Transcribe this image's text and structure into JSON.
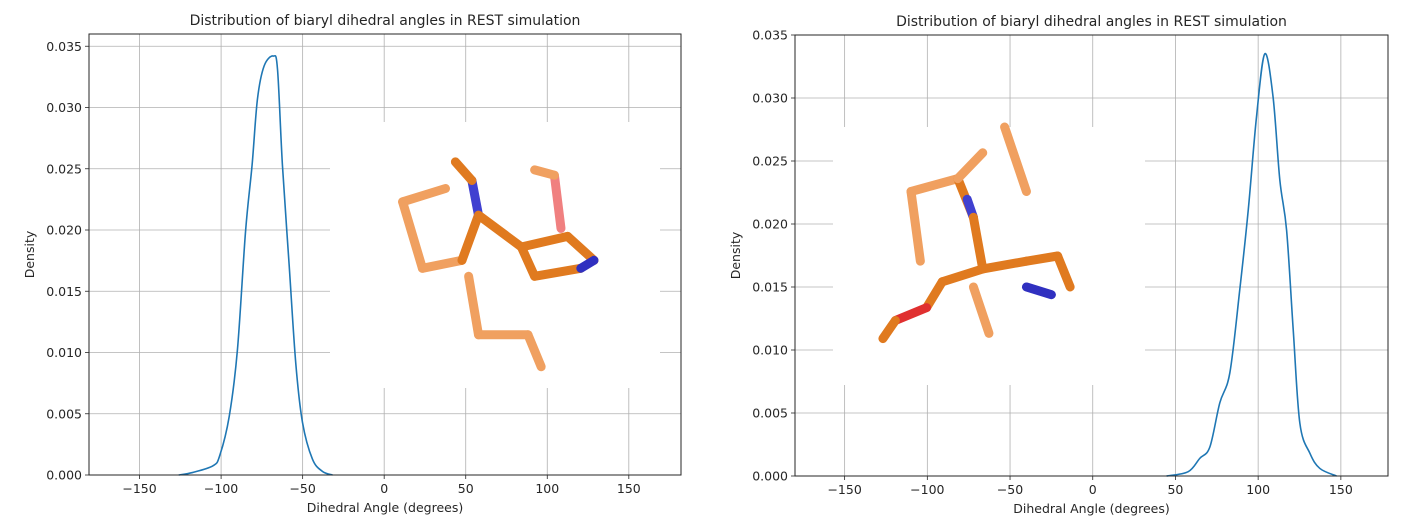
{
  "chart_data": [
    {
      "type": "line",
      "title": "Distribution of biaryl dihedral angles in REST simulation",
      "xlabel": "Dihedral Angle (degrees)",
      "ylabel": "Density",
      "xlim": [
        -181,
        182
      ],
      "ylim": [
        0,
        0.036
      ],
      "xticks": [
        -150,
        -100,
        -50,
        0,
        50,
        100,
        150
      ],
      "xtick_labels": [
        "−150",
        "−100",
        "−50",
        "0",
        "50",
        "100",
        "150"
      ],
      "yticks": [
        0,
        0.005,
        0.01,
        0.015,
        0.02,
        0.025,
        0.03,
        0.035
      ],
      "ytick_labels": [
        "0.000",
        "0.005",
        "0.010",
        "0.015",
        "0.020",
        "0.025",
        "0.030",
        "0.035"
      ],
      "grid": true,
      "color": "#1f77b4",
      "inset_image": "molecule-structure",
      "series": [
        {
          "x": [
            -126,
            -117.6,
            -105,
            -100.8,
            -95,
            -90,
            -85,
            -81,
            -77.7,
            -73.6,
            -68,
            -65.4,
            -62.4,
            -58.3,
            -54.2,
            -50.1,
            -44,
            -37.9,
            -31.7
          ],
          "y": [
            0,
            0.0002,
            0.00075,
            0.0016,
            0.0048,
            0.0102,
            0.0199,
            0.0253,
            0.0307,
            0.0334,
            0.0342,
            0.0331,
            0.0253,
            0.0172,
            0.0091,
            0.0043,
            0.0013,
            0.0003,
            0
          ]
        }
      ]
    },
    {
      "type": "line",
      "title": "Distribution of biaryl dihedral angles in REST simulation",
      "xlabel": "Dihedral Angle (degrees)",
      "ylabel": "Density",
      "xlim": [
        -180,
        178.5
      ],
      "ylim": [
        0,
        0.035
      ],
      "xticks": [
        -150,
        -100,
        -50,
        0,
        50,
        100,
        150
      ],
      "xtick_labels": [
        "−150",
        "−100",
        "−50",
        "0",
        "50",
        "100",
        "150"
      ],
      "yticks": [
        0,
        0.005,
        0.01,
        0.015,
        0.02,
        0.025,
        0.03,
        0.035
      ],
      "ytick_labels": [
        "0.000",
        "0.005",
        "0.010",
        "0.015",
        "0.020",
        "0.025",
        "0.030",
        "0.035"
      ],
      "grid": true,
      "color": "#1f77b4",
      "inset_image": "molecule-structure",
      "series": [
        {
          "x": [
            44.6,
            57.7,
            64.7,
            70.8,
            76.8,
            82.9,
            88.9,
            94,
            99,
            104,
            109,
            113.1,
            117.2,
            121.2,
            125.2,
            131.3,
            137.3,
            147.4
          ],
          "y": [
            0,
            0.00034,
            0.0014,
            0.0023,
            0.0058,
            0.0082,
            0.0148,
            0.0211,
            0.0285,
            0.0335,
            0.0301,
            0.0235,
            0.0195,
            0.0116,
            0.0042,
            0.0018,
            0.0006,
            0
          ]
        }
      ]
    }
  ]
}
